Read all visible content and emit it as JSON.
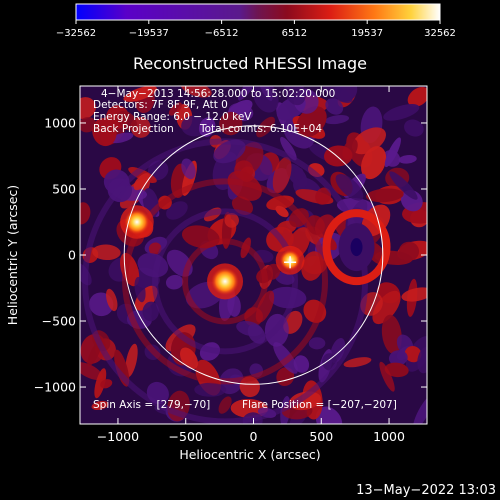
{
  "chart_data": {
    "type": "heatmap",
    "title": "Reconstructed RHESSI Image",
    "xlabel": "Heliocentric X (arcsec)",
    "ylabel": "Heliocentric Y (arcsec)",
    "xlim": [
      -1280,
      1280
    ],
    "ylim": [
      -1280,
      1280
    ],
    "x_ticks": [
      -1000,
      -500,
      0,
      500,
      1000
    ],
    "y_ticks": [
      1000,
      500,
      0,
      -500,
      -1000
    ],
    "x_tick_labels": [
      "−1000",
      "−500",
      "0",
      "500",
      "1000"
    ],
    "y_tick_labels": [
      "1000",
      "500",
      "0",
      "−500",
      "−1000"
    ],
    "colorbar": {
      "min": -32562,
      "max": 32562,
      "tick_labels": [
        "−32562",
        "−19537",
        "−6512",
        "6512",
        "19537",
        "32562"
      ],
      "colormap": [
        "#0000ff",
        "#5a00c8",
        "#5a1a8c",
        "#8c0a1e",
        "#dc1e14",
        "#ff7814",
        "#ffd23c",
        "#ffffff"
      ]
    },
    "annotations": {
      "time_range": "4−May−2013 14:56:28.000 to 15:02:20.000",
      "detectors": "Detectors: 7F 8F 9F, Att 0",
      "energy_range": "Energy Range: 6.0 − 12.0 keV",
      "method": "Back Projection",
      "total_counts": "Total counts: 6.10E+04",
      "spin_axis": "Spin Axis = [279,−70]",
      "flare_position": "Flare Position = [−207,−207]"
    },
    "solar_limb_radius": 954,
    "flare_marker": [
      270,
      -55
    ],
    "bright_sources": [
      {
        "x": -210,
        "y": -200,
        "intensity": 1.0
      },
      {
        "x": -860,
        "y": 250,
        "intensity": 0.85
      },
      {
        "x": 270,
        "y": -40,
        "intensity": 0.55
      }
    ],
    "negative_sources": [
      {
        "x": 760,
        "y": 60,
        "intensity": 0.8
      }
    ]
  },
  "footer": {
    "timestamp": "13−May−2022 13:03"
  }
}
